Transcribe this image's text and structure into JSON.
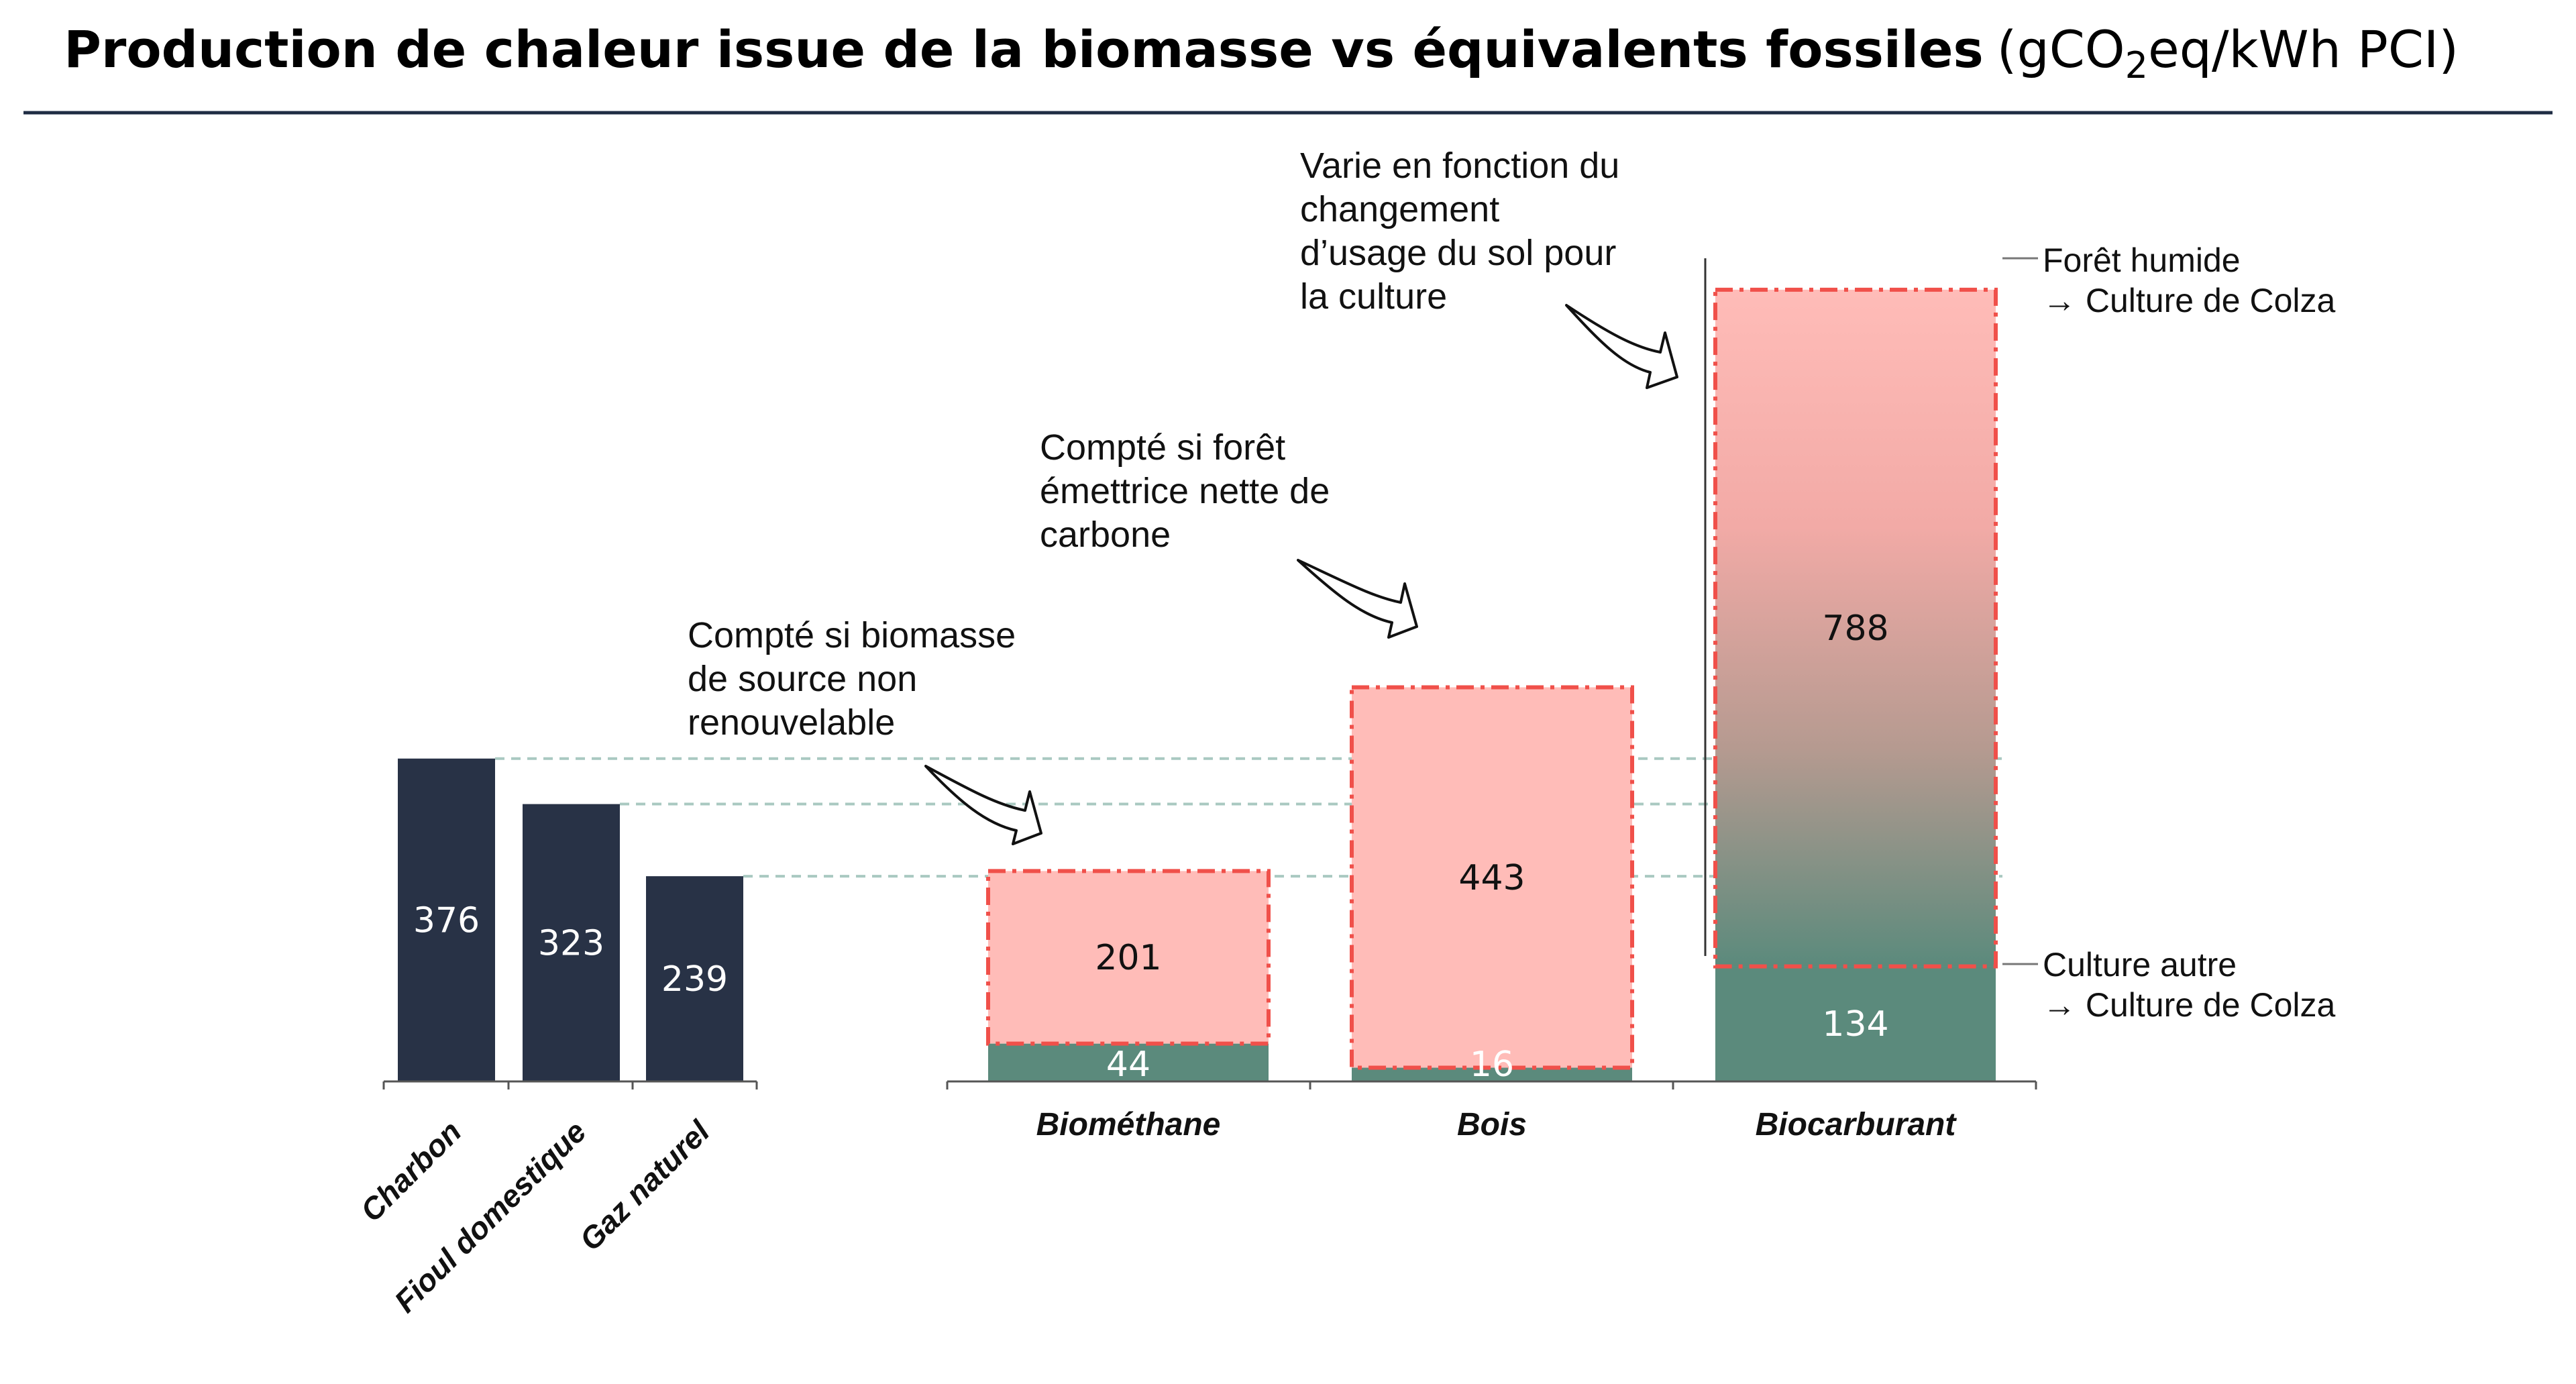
{
  "title": {
    "main": "Production de chaleur issue de la biomasse vs équivalents fossiles",
    "unit_open": "(gCO",
    "unit_sub": "2",
    "unit_close": "eq/kWh PCI)"
  },
  "colors": {
    "fossil": "#283246",
    "base": "#5b8a7c",
    "pink": "#ffbcb8",
    "dash": "#f0504a",
    "guide": "#a9c9c1",
    "axis": "#555555",
    "rule": "#1f2d44"
  },
  "chart_data": {
    "type": "bar",
    "fossil": {
      "categories": [
        "Charbon",
        "Fioul domestique",
        "Gaz naturel"
      ],
      "values": [
        376,
        323,
        239
      ]
    },
    "biomass": {
      "categories": [
        "Biométhane",
        "Bois",
        "Biocarburant"
      ],
      "series": [
        {
          "values": [
            44,
            16,
            134
          ]
        },
        {
          "values": [
            201,
            443,
            788
          ]
        }
      ]
    },
    "annotations": {
      "biomethane": [
        "Compté si biomasse",
        "de source non",
        "renouvelable"
      ],
      "bois": [
        "Compté si forêt",
        "émettrice nette de",
        "carbone"
      ],
      "biocarburant": [
        "Varie en fonction du",
        "changement",
        "d’usage du sol pour",
        "la culture"
      ],
      "range_top": [
        "Forêt humide",
        "→ Culture de Colza"
      ],
      "range_bottom": [
        "Culture autre",
        "→ Culture de Colza"
      ]
    }
  }
}
